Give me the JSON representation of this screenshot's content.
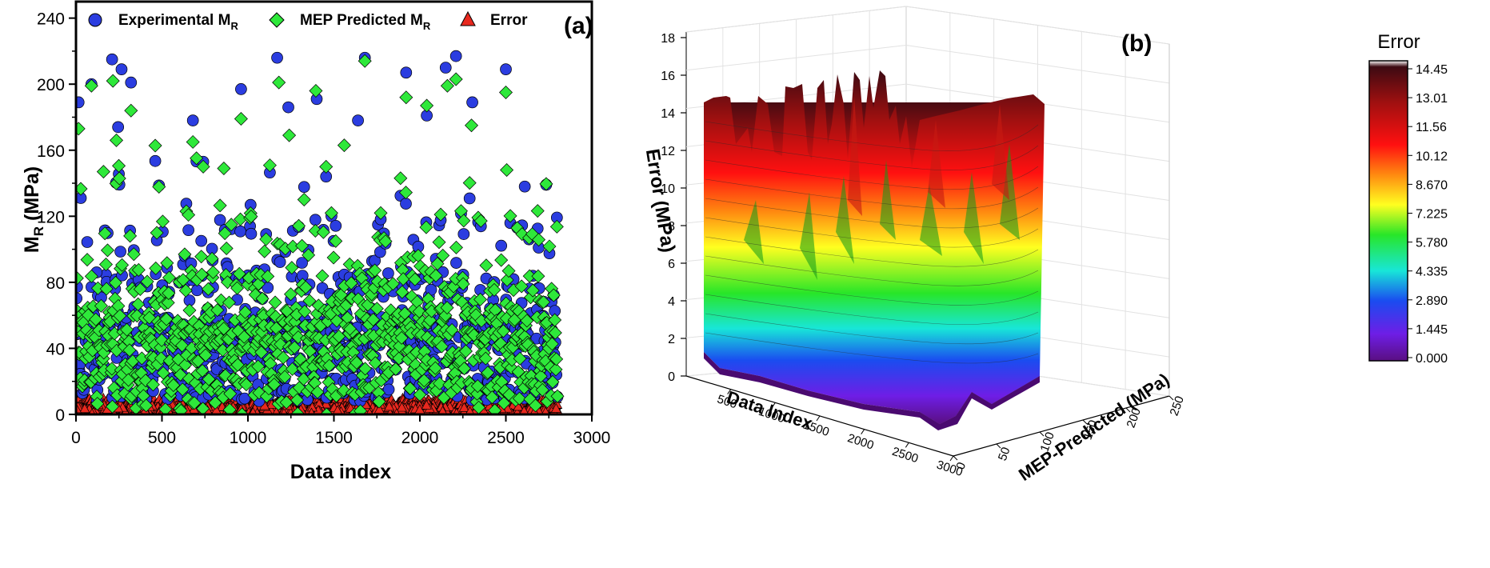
{
  "chart_data": [
    {
      "panel": "(a)",
      "type": "scatter",
      "title": "",
      "xlabel": "Data index",
      "ylabel_main": "M",
      "ylabel_sub": "R",
      "ylabel_unit": "(MPa)",
      "xlim": [
        0,
        3000
      ],
      "ylim": [
        0,
        250
      ],
      "xticks": [
        0,
        500,
        1000,
        1500,
        2000,
        2500,
        3000
      ],
      "yticks": [
        0,
        40,
        80,
        120,
        160,
        200,
        240
      ],
      "n_points": 2800,
      "legend": [
        {
          "label": "Experimental M",
          "sub": "R",
          "marker": "circle",
          "color": "#2b3de0"
        },
        {
          "label": "MEP Predicted M",
          "sub": "R",
          "marker": "diamond",
          "color": "#2ee83a"
        },
        {
          "label": "Error",
          "sub": "",
          "marker": "triangle",
          "color": "#e8281e"
        }
      ],
      "series": [
        {
          "name": "Experimental MR",
          "summary": "index 0-2800, values mostly 20-110 MPa, peaks up to ~217 MPa",
          "highlights": [
            [
              15,
              189
            ],
            [
              90,
              200
            ],
            [
              120,
              86
            ],
            [
              210,
              215
            ],
            [
              245,
              174
            ],
            [
              265,
              209
            ],
            [
              320,
              201
            ],
            [
              680,
              178
            ],
            [
              740,
              153
            ],
            [
              960,
              197
            ],
            [
              1170,
              216
            ],
            [
              1235,
              186
            ],
            [
              1400,
              191
            ],
            [
              1640,
              178
            ],
            [
              1680,
              216
            ],
            [
              1920,
              207
            ],
            [
              2040,
              181
            ],
            [
              2150,
              210
            ],
            [
              2210,
              217
            ],
            [
              2305,
              189
            ],
            [
              2500,
              209
            ],
            [
              2610,
              138
            ]
          ]
        },
        {
          "name": "MEP Predicted MR",
          "summary": "tracks experimental values, range ~0-215 MPa",
          "highlights": [
            [
              15,
              173
            ],
            [
              90,
              199
            ],
            [
              160,
              147
            ],
            [
              215,
              202
            ],
            [
              235,
              166
            ],
            [
              320,
              184
            ],
            [
              680,
              165
            ],
            [
              740,
              150
            ],
            [
              860,
              149
            ],
            [
              960,
              179
            ],
            [
              1180,
              201
            ],
            [
              1240,
              169
            ],
            [
              1395,
              196
            ],
            [
              1560,
              163
            ],
            [
              1680,
              214
            ],
            [
              1920,
              192
            ],
            [
              2040,
              187
            ],
            [
              2160,
              199
            ],
            [
              2210,
              203
            ],
            [
              2300,
              175
            ],
            [
              2500,
              195
            ],
            [
              2505,
              148
            ]
          ]
        },
        {
          "name": "Error",
          "summary": "absolute error, mostly 0-15 MPa, max ~20 MPa"
        }
      ],
      "colors": {
        "experimental": "#2b3de0",
        "predicted": "#2ee83a",
        "error": "#e8281e"
      }
    },
    {
      "panel": "(b)",
      "type": "surface3d",
      "xlabel": "Data Index",
      "ylabel": "MEP-Predicted (MPa)",
      "zlabel": "Error (MPa)",
      "xticks": [
        500,
        1000,
        1500,
        2000,
        2500,
        3000
      ],
      "yticks": [
        0,
        50,
        100,
        150,
        200,
        250
      ],
      "zticks": [
        0,
        2,
        4,
        6,
        8,
        10,
        12,
        14,
        16,
        18
      ],
      "zlim": [
        0,
        18
      ],
      "colorbar": {
        "title": "Error",
        "ticks": [
          "14.45",
          "13.01",
          "11.56",
          "10.12",
          "8.670",
          "7.225",
          "5.780",
          "4.335",
          "2.890",
          "1.445",
          "0.000"
        ],
        "min": 0.0,
        "max": 14.45,
        "colors": [
          "#3d0a12",
          "#a01010",
          "#ff1010",
          "#ff8a10",
          "#ffff20",
          "#28e628",
          "#18e6d8",
          "#1a4cf0",
          "#6e1ee6",
          "#5a0f82"
        ]
      }
    }
  ]
}
